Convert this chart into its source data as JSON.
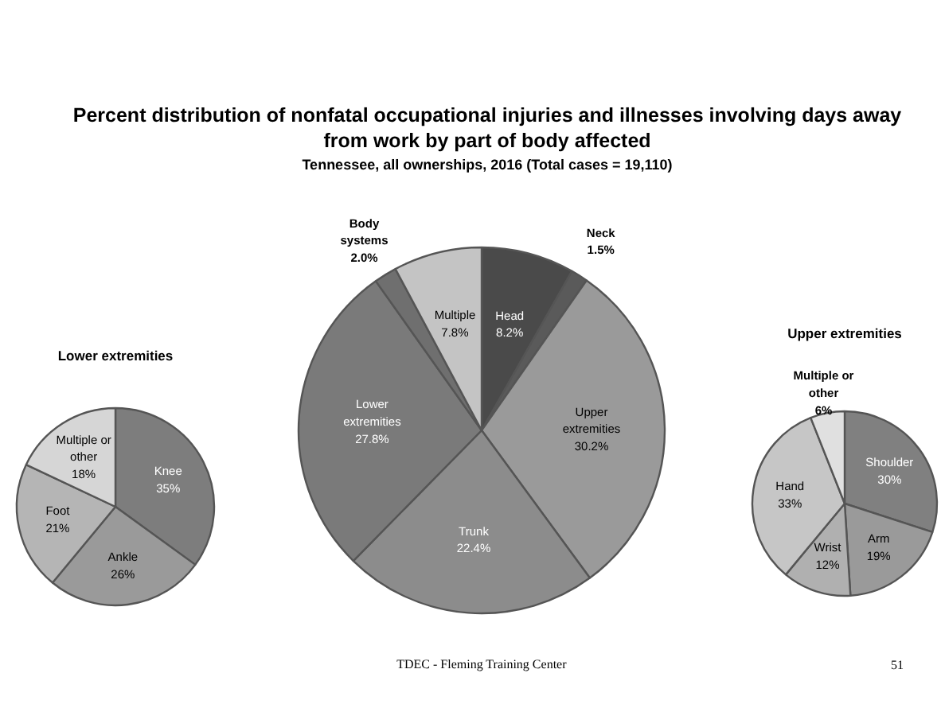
{
  "chart_data": [
    {
      "type": "pie",
      "title": "Lower extremities",
      "categories": [
        "Knee",
        "Ankle",
        "Foot",
        "Multiple or other"
      ],
      "values": [
        35,
        26,
        21,
        18
      ],
      "value_labels": [
        "35%",
        "26%",
        "21%",
        "18%"
      ],
      "colors": [
        "#7d7d7d",
        "#9a9a9a",
        "#b5b5b5",
        "#d6d6d6"
      ]
    },
    {
      "type": "pie",
      "title": "Percent distribution of nonfatal occupational injuries and illnesses involving days away from work by part of body affected",
      "subtitle": "Tennessee, all ownerships, 2016 (Total cases = 19,110)",
      "categories": [
        "Head",
        "Neck",
        "Upper extremities",
        "Trunk",
        "Lower extremities",
        "Body systems",
        "Multiple"
      ],
      "values": [
        8.2,
        1.5,
        30.2,
        22.4,
        27.8,
        2.0,
        7.8
      ],
      "value_labels": [
        "8.2%",
        "1.5%",
        "30.2%",
        "22.4%",
        "27.8%",
        "2.0%",
        "7.8%"
      ],
      "colors": [
        "#4a4a4a",
        "#5a5a5a",
        "#9a9a9a",
        "#8c8c8c",
        "#7a7a7a",
        "#6f6f6f",
        "#c4c4c4"
      ],
      "annotations": [
        "TDEC - Fleming Training Center"
      ]
    },
    {
      "type": "pie",
      "title": "Upper extremities",
      "categories": [
        "Shoulder",
        "Arm",
        "Wrist",
        "Hand",
        "Multiple or other"
      ],
      "values": [
        30,
        19,
        12,
        33,
        6
      ],
      "value_labels": [
        "30%",
        "19%",
        "12%",
        "33%",
        "6%"
      ],
      "colors": [
        "#808080",
        "#9a9a9a",
        "#b0b0b0",
        "#c6c6c6",
        "#e0e0e0"
      ],
      "annotations": [
        "51"
      ]
    }
  ]
}
